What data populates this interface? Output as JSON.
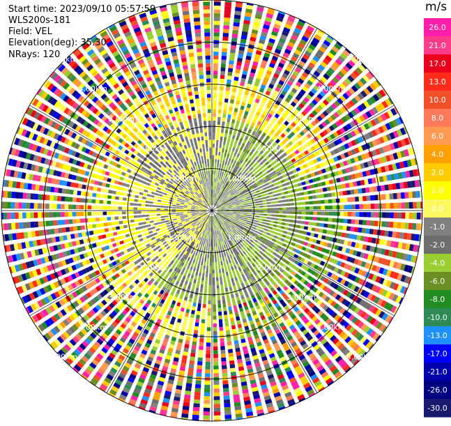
{
  "header": {
    "start_time": "Start time: 2023/09/10 05:57:59",
    "instrument": "WLS200s-181",
    "field": "Field: VEL",
    "elevation": "Elevation(deg): 35.30",
    "nrays": "NRays: 120"
  },
  "chart_data": {
    "type": "heatmap",
    "projection": "polar-ppi",
    "range_ring_labels": [
      "1.00km",
      "2.00km",
      "3.00km",
      "4.00km",
      "5.00km"
    ],
    "range_rings_km": [
      1,
      2,
      3,
      4,
      5
    ],
    "colorbar": {
      "unit": "m/s",
      "tick_labels": [
        "26.0",
        "21.0",
        "17.0",
        "13.0",
        "10.0",
        "8.0",
        "6.0",
        "4.0",
        "2.0",
        "1.0",
        "0.0",
        "-1.0",
        "-2.0",
        "-4.0",
        "-6.0",
        "-8.0",
        "-10.0",
        "-13.0",
        "-17.0",
        "-21.0",
        "-26.0",
        "-30.0"
      ],
      "colors": [
        "#ff1fa8",
        "#ff3c8c",
        "#e8001c",
        "#ff2c1c",
        "#f0502a",
        "#ff7a5a",
        "#ff9a50",
        "#ffa000",
        "#ffcc00",
        "#ffff00",
        "#fbf860",
        "#808080",
        "#6e6e6e",
        "#9acd32",
        "#6b8e23",
        "#228b22",
        "#2e8b57",
        "#1e90ff",
        "#0000ff",
        "#0000aa",
        "#000080",
        "#191970"
      ]
    }
  }
}
